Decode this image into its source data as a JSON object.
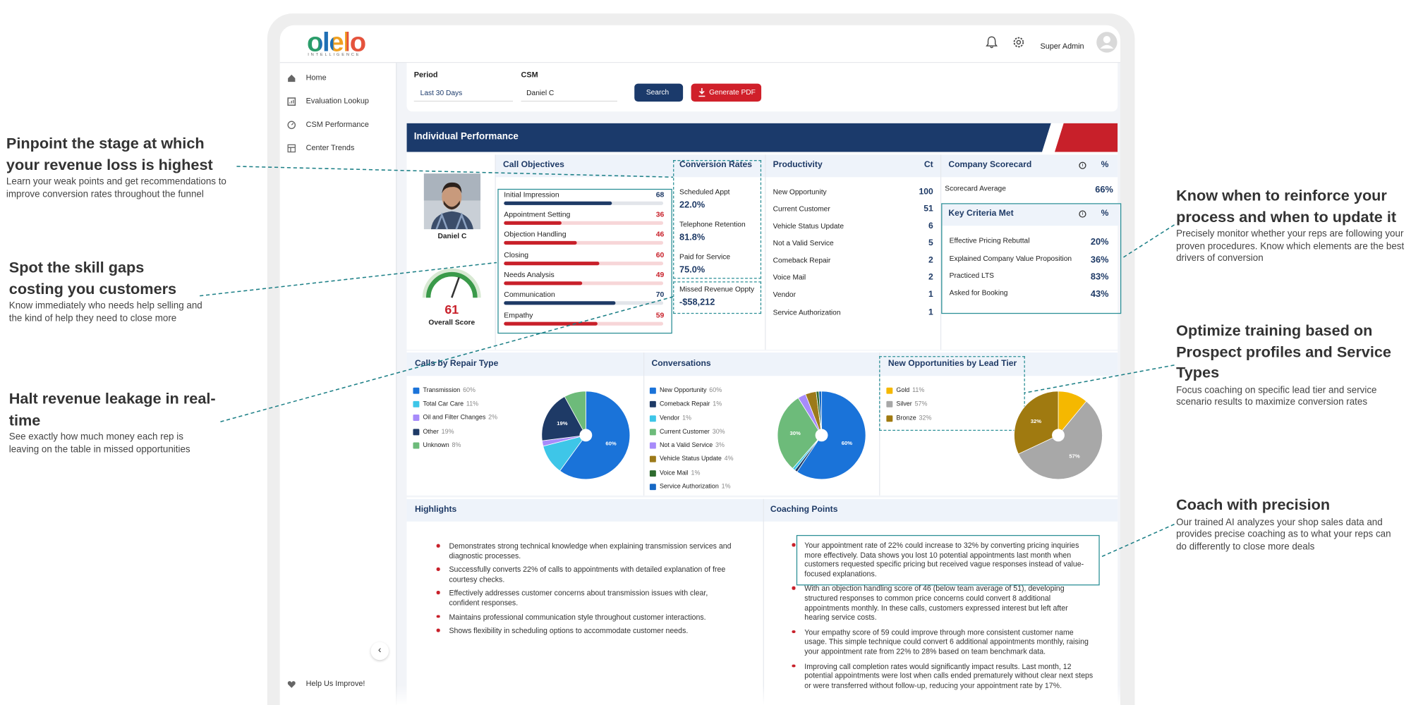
{
  "annotations": [
    {
      "title": "Pinpoint the stage at which your revenue loss is highest",
      "text": "Learn your weak points and get recommendations to improve conversion rates throughout the funnel"
    },
    {
      "title": "Spot the skill gaps costing you customers",
      "text": "Know immediately who needs help selling and the kind of help they need to close more"
    },
    {
      "title": "Halt revenue leakage in real-time",
      "text": "See exactly how much money each rep is leaving on the table in missed opportunities"
    },
    {
      "title": "Know when to reinforce your process and when to update it",
      "text": "Precisely monitor whether your reps are following your proven procedures.  Know which elements are the best drivers of conversion"
    },
    {
      "title": "Optimize training based on Prospect profiles and Service Types",
      "text": "Focus coaching on specific lead tier and service scenario results to maximize conversion rates"
    },
    {
      "title": "Coach with precision",
      "text": "Our trained AI analyzes your shop sales data and provides precise coaching as to what your reps can do differently to close more deals"
    }
  ],
  "header": {
    "logo": "olelo",
    "logo_tagline": "INTELLIGENCE",
    "user": "Super Admin"
  },
  "sidebar": {
    "items": [
      "Home",
      "Evaluation Lookup",
      "CSM Performance",
      "Center Trends"
    ],
    "footer": "Help Us Improve!"
  },
  "filters": {
    "period_label": "Period",
    "period_value": "Last 30 Days",
    "csm_label": "CSM",
    "csm_value": "Daniel C",
    "search": "Search",
    "pdf": "Generate PDF"
  },
  "performance": {
    "title": "Individual Performance",
    "name": "Daniel C",
    "overall_score": 61,
    "overall_label": "Overall Score",
    "call_objectives": {
      "title": "Call Objectives",
      "items": [
        {
          "label": "Initial Impression",
          "value": 68,
          "color": "#1e3a66"
        },
        {
          "label": "Appointment Setting",
          "value": 36,
          "color": "#c8202a"
        },
        {
          "label": "Objection Handling",
          "value": 46,
          "color": "#c8202a"
        },
        {
          "label": "Closing",
          "value": 60,
          "color": "#c8202a"
        },
        {
          "label": "Needs Analysis",
          "value": 49,
          "color": "#c8202a"
        },
        {
          "label": "Communication",
          "value": 70,
          "color": "#1e3a66"
        },
        {
          "label": "Empathy",
          "value": 59,
          "color": "#c8202a"
        }
      ]
    },
    "conversion_rates": {
      "title": "Conversion Rates",
      "items": [
        {
          "label": "Scheduled Appt",
          "value": "22.0%"
        },
        {
          "label": "Telephone Retention",
          "value": "81.8%"
        },
        {
          "label": "Paid for Service",
          "value": "75.0%"
        }
      ],
      "missed": {
        "label": "Missed Revenue Oppty",
        "value": "-$58,212"
      }
    },
    "productivity": {
      "title": "Productivity",
      "unit": "Ct",
      "items": [
        {
          "label": "New Opportunity",
          "value": 100
        },
        {
          "label": "Current Customer",
          "value": 51
        },
        {
          "label": "Vehicle Status Update",
          "value": 6
        },
        {
          "label": "Not a Valid Service",
          "value": 5
        },
        {
          "label": "Comeback Repair",
          "value": 2
        },
        {
          "label": "Voice Mail",
          "value": 2
        },
        {
          "label": "Vendor",
          "value": 1
        },
        {
          "label": "Service Authorization",
          "value": 1
        }
      ]
    },
    "scorecard": {
      "title": "Company Scorecard",
      "unit": "%",
      "average_label": "Scorecard Average",
      "average": "66%"
    },
    "key_criteria": {
      "title": "Key Criteria Met",
      "unit": "%",
      "items": [
        {
          "label": "Effective Pricing Rebuttal",
          "value": "20%"
        },
        {
          "label": "Explained Company Value Proposition",
          "value": "36%"
        },
        {
          "label": "Practiced LTS",
          "value": "83%"
        },
        {
          "label": "Asked for Booking",
          "value": "43%"
        }
      ]
    }
  },
  "charts": [
    {
      "type": "pie",
      "title": "Calls by Repair Type",
      "categories": [
        "Transmission",
        "Total Car Care",
        "Oil and Filter Changes",
        "Other",
        "Unknown"
      ],
      "values": [
        60,
        11,
        2,
        19,
        8
      ],
      "value_labels": [
        "60%",
        "11%",
        "2%",
        "19%",
        "8%"
      ],
      "colors": [
        "#1a73d9",
        "#3ec6e8",
        "#a78bfa",
        "#1e3a66",
        "#6dbb7a"
      ]
    },
    {
      "type": "pie",
      "title": "Conversations",
      "categories": [
        "New Opportunity",
        "Comeback Repair",
        "Vendor",
        "Current Customer",
        "Not a Valid Service",
        "Vehicle Status Update",
        "Voice Mail",
        "Service Authorization"
      ],
      "values": [
        60,
        1,
        1,
        30,
        3,
        4,
        1,
        1
      ],
      "value_labels": [
        "60%",
        "1%",
        "1%",
        "30%",
        "3%",
        "4%",
        "1%",
        "1%"
      ],
      "colors": [
        "#1a73d9",
        "#1e3a66",
        "#3ec6e8",
        "#6dbb7a",
        "#a78bfa",
        "#9c7a1a",
        "#2e6b2e",
        "#1668c4"
      ]
    },
    {
      "type": "pie",
      "title": "New Opportunities by Lead Tier",
      "categories": [
        "Gold",
        "Silver",
        "Bronze"
      ],
      "values": [
        11,
        57,
        32
      ],
      "value_labels": [
        "11%",
        "57%",
        "32%"
      ],
      "colors": [
        "#f5b800",
        "#a8a8a8",
        "#a07a10"
      ]
    }
  ],
  "highlights": {
    "title": "Highlights",
    "items": [
      "Demonstrates strong technical knowledge when explaining transmission services and diagnostic processes.",
      "Successfully converts 22% of calls to appointments with detailed explanation of free courtesy checks.",
      "Effectively addresses customer concerns about transmission issues with clear, confident responses.",
      "Maintains professional communication style throughout customer interactions.",
      "Shows flexibility in scheduling options to accommodate customer needs."
    ]
  },
  "coaching": {
    "title": "Coaching Points",
    "items": [
      "Your appointment rate of 22% could increase to 32% by converting pricing inquiries more effectively. Data shows you lost 10 potential appointments last month when customers requested specific pricing but received vague responses instead of value-focused explanations.",
      "With an objection handling score of 46 (below team average of 51), developing structured responses to common price concerns could convert 8 additional appointments monthly. In these calls, customers expressed interest but left after hearing service costs.",
      "Your empathy score of 59 could improve through more consistent customer name usage. This simple technique could convert 6 additional appointments monthly, raising your appointment rate from 22% to 28% based on team benchmark data.",
      "Improving call completion rates would significantly impact results. Last month, 12 potential appointments were lost when calls ended prematurely without clear next steps or were transferred without follow-up, reducing your appointment rate by 17%."
    ]
  }
}
